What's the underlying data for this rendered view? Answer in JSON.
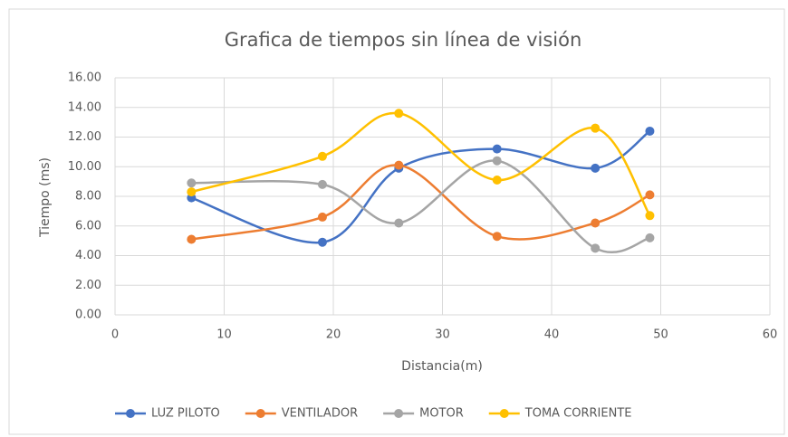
{
  "chart_data": {
    "type": "line",
    "smooth": true,
    "title": "Grafica de tiempos sin línea de visión",
    "x_label": "Distancia(m)",
    "y_label": "Tiempo (ms)",
    "x": [
      7,
      19,
      26,
      35,
      44,
      49
    ],
    "series": [
      {
        "name": "LUZ PILOTO",
        "color": "#4472c4",
        "values": [
          7.9,
          4.9,
          9.9,
          11.2,
          9.9,
          12.4
        ]
      },
      {
        "name": "VENTILADOR",
        "color": "#ed7d31",
        "values": [
          5.1,
          6.6,
          10.1,
          5.3,
          6.2,
          8.1
        ]
      },
      {
        "name": "MOTOR",
        "color": "#a5a5a5",
        "values": [
          8.9,
          8.8,
          6.2,
          10.4,
          4.5,
          5.2
        ]
      },
      {
        "name": "TOMA CORRIENTE",
        "color": "#ffc000",
        "values": [
          8.3,
          10.7,
          13.6,
          9.1,
          12.6,
          6.7
        ]
      }
    ],
    "xlim": [
      0,
      60
    ],
    "xticks": [
      0,
      10,
      20,
      30,
      40,
      50,
      60
    ],
    "ylim": [
      0,
      16
    ],
    "yticks": [
      {
        "value": 0,
        "label": "0.00"
      },
      {
        "value": 2,
        "label": "2.00"
      },
      {
        "value": 4,
        "label": "4.00"
      },
      {
        "value": 6,
        "label": "6.00"
      },
      {
        "value": 8,
        "label": "8.00"
      },
      {
        "value": 10,
        "label": "10.00"
      },
      {
        "value": 12,
        "label": "12.00"
      },
      {
        "value": 14,
        "label": "14.00"
      },
      {
        "value": 16,
        "label": "16.00"
      }
    ],
    "grid": true,
    "legend": "bottom"
  }
}
